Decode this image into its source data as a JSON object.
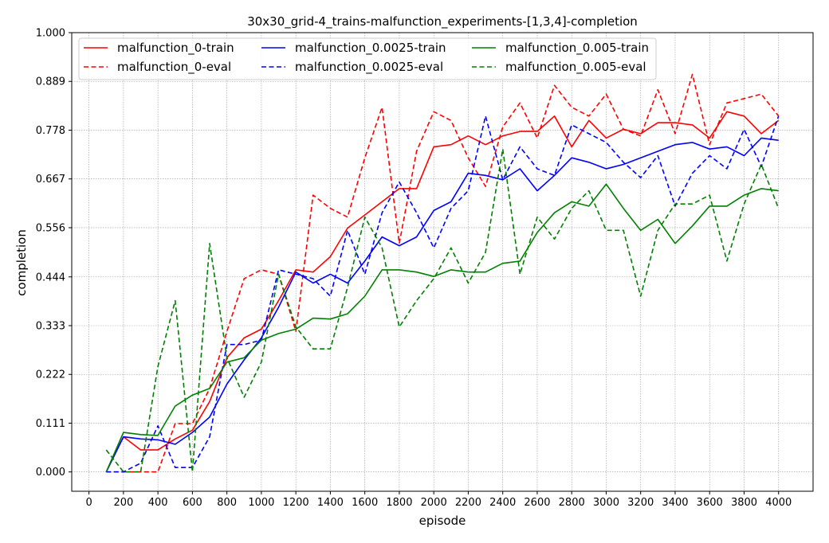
{
  "chart_data": {
    "type": "line",
    "title": "30x30_grid-4_trains-malfunction_experiments-[1,3,4]-completion",
    "xlabel": "episode",
    "ylabel": "completion",
    "xlim": [
      -100,
      4200
    ],
    "ylim": [
      -0.044,
      1.0
    ],
    "xticks": [
      0,
      200,
      400,
      600,
      800,
      1000,
      1200,
      1400,
      1600,
      1800,
      2000,
      2200,
      2400,
      2600,
      2800,
      3000,
      3200,
      3400,
      3600,
      3800,
      4000
    ],
    "xtick_labels": [
      "0",
      "200",
      "400",
      "600",
      "800",
      "1000",
      "1200",
      "1400",
      "1600",
      "1800",
      "2000",
      "2200",
      "2400",
      "2600",
      "2800",
      "3000",
      "3200",
      "3400",
      "3600",
      "3800",
      "4000"
    ],
    "yticks": [
      0.0,
      0.111,
      0.222,
      0.333,
      0.444,
      0.556,
      0.667,
      0.778,
      0.889,
      1.0
    ],
    "ytick_labels": [
      "0.000",
      "0.111",
      "0.222",
      "0.333",
      "0.444",
      "0.556",
      "0.667",
      "0.778",
      "0.889",
      "1.000"
    ],
    "grid": true,
    "legend_position": "top-left",
    "x": [
      100,
      200,
      300,
      400,
      500,
      600,
      700,
      800,
      900,
      1000,
      1100,
      1200,
      1300,
      1400,
      1500,
      1600,
      1700,
      1800,
      1900,
      2000,
      2100,
      2200,
      2300,
      2400,
      2500,
      2600,
      2700,
      2800,
      2900,
      3000,
      3100,
      3200,
      3300,
      3400,
      3500,
      3600,
      3700,
      3800,
      3900,
      4000
    ],
    "series": [
      {
        "name": "malfunction_0-train",
        "color": "#ff0000",
        "dash": "solid",
        "values": [
          0.0,
          0.08,
          0.05,
          0.05,
          0.075,
          0.095,
          0.16,
          0.26,
          0.305,
          0.325,
          0.39,
          0.46,
          0.455,
          0.49,
          0.555,
          0.585,
          0.615,
          0.645,
          0.645,
          0.74,
          0.745,
          0.765,
          0.745,
          0.765,
          0.775,
          0.775,
          0.81,
          0.74,
          0.8,
          0.76,
          0.78,
          0.77,
          0.795,
          0.795,
          0.79,
          0.76,
          0.82,
          0.81,
          0.77,
          0.8
        ]
      },
      {
        "name": "malfunction_0-eval",
        "color": "#ff0000",
        "dash": "dashed",
        "values": [
          0.0,
          0.0,
          0.0,
          0.0,
          0.11,
          0.11,
          0.19,
          0.32,
          0.44,
          0.46,
          0.45,
          0.32,
          0.63,
          0.6,
          0.58,
          0.715,
          0.83,
          0.52,
          0.73,
          0.82,
          0.8,
          0.715,
          0.65,
          0.785,
          0.84,
          0.76,
          0.88,
          0.83,
          0.81,
          0.86,
          0.78,
          0.765,
          0.87,
          0.77,
          0.905,
          0.745,
          0.84,
          0.85,
          0.86,
          0.81
        ]
      },
      {
        "name": "malfunction_0.0025-train",
        "color": "#0000ff",
        "dash": "solid",
        "values": [
          0.0,
          0.08,
          0.075,
          0.073,
          0.063,
          0.09,
          0.125,
          0.2,
          0.255,
          0.305,
          0.375,
          0.455,
          0.43,
          0.45,
          0.43,
          0.48,
          0.535,
          0.515,
          0.535,
          0.595,
          0.615,
          0.68,
          0.675,
          0.665,
          0.69,
          0.64,
          0.675,
          0.715,
          0.705,
          0.69,
          0.7,
          0.715,
          0.73,
          0.745,
          0.75,
          0.735,
          0.74,
          0.72,
          0.76,
          0.755
        ]
      },
      {
        "name": "malfunction_0.0025-eval",
        "color": "#0000ff",
        "dash": "dashed",
        "values": [
          0.0,
          0.0,
          0.02,
          0.105,
          0.01,
          0.01,
          0.08,
          0.29,
          0.29,
          0.3,
          0.46,
          0.45,
          0.44,
          0.4,
          0.55,
          0.45,
          0.59,
          0.66,
          0.59,
          0.51,
          0.6,
          0.64,
          0.81,
          0.665,
          0.74,
          0.69,
          0.675,
          0.79,
          0.77,
          0.75,
          0.705,
          0.67,
          0.72,
          0.605,
          0.68,
          0.72,
          0.69,
          0.78,
          0.695,
          0.81
        ]
      },
      {
        "name": "malfunction_0.005-train",
        "color": "#008000",
        "dash": "solid",
        "values": [
          0.0,
          0.09,
          0.085,
          0.083,
          0.15,
          0.175,
          0.19,
          0.25,
          0.26,
          0.3,
          0.315,
          0.325,
          0.35,
          0.348,
          0.36,
          0.4,
          0.46,
          0.46,
          0.455,
          0.445,
          0.46,
          0.455,
          0.455,
          0.475,
          0.48,
          0.545,
          0.59,
          0.615,
          0.605,
          0.655,
          0.6,
          0.55,
          0.575,
          0.52,
          0.56,
          0.605,
          0.605,
          0.63,
          0.645,
          0.64
        ]
      },
      {
        "name": "malfunction_0.005-eval",
        "color": "#008000",
        "dash": "dashed",
        "values": [
          0.05,
          0.0,
          0.0,
          0.24,
          0.39,
          0.0,
          0.52,
          0.26,
          0.17,
          0.25,
          0.45,
          0.33,
          0.28,
          0.28,
          0.42,
          0.58,
          0.51,
          0.33,
          0.39,
          0.44,
          0.51,
          0.43,
          0.5,
          0.735,
          0.45,
          0.58,
          0.53,
          0.6,
          0.64,
          0.55,
          0.55,
          0.4,
          0.55,
          0.61,
          0.61,
          0.63,
          0.48,
          0.61,
          0.7,
          0.6
        ]
      }
    ]
  },
  "colors": {
    "grid": "#999999",
    "axis": "#000000",
    "background": "#ffffff"
  }
}
